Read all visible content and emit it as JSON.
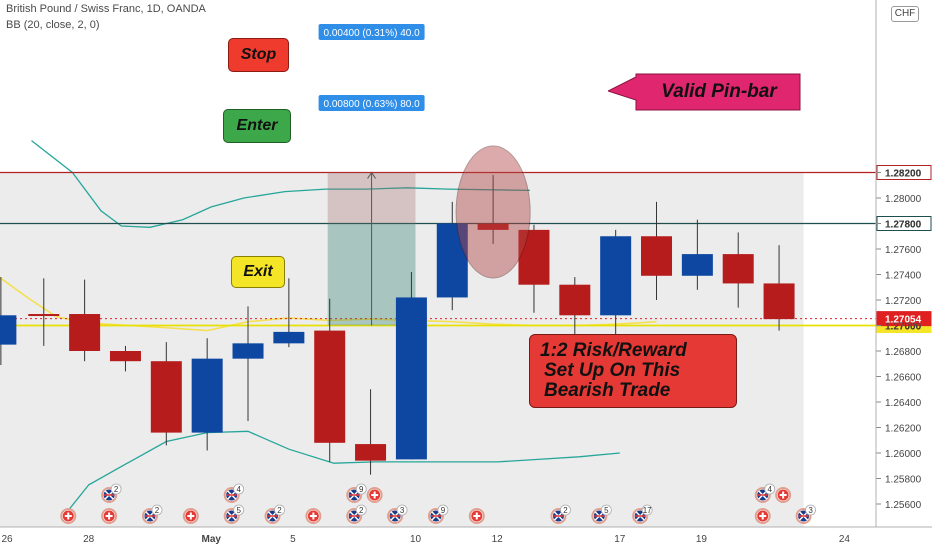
{
  "header": {
    "symbol_line": "British Pound / Swiss Franc, 1D, OANDA",
    "indicator_line": "BB (20, close, 2, 0)",
    "currency_badge": "CHF"
  },
  "chart_data": {
    "type": "candlestick",
    "title": "British Pound / Swiss Franc, 1D, OANDA",
    "ylim": [
      1.2555,
      1.2845
    ],
    "y_ticks": [
      "1.25600",
      "1.25800",
      "1.26000",
      "1.26200",
      "1.26400",
      "1.26600",
      "1.26800",
      "1.27000",
      "1.27200",
      "1.27400",
      "1.27600",
      "1.27800",
      "1.28000",
      "1.28200"
    ],
    "x_tick_labels": [
      {
        "label": "26",
        "slot": 0
      },
      {
        "label": "28",
        "slot": 2
      },
      {
        "label": "May",
        "slot": 5
      },
      {
        "label": "5",
        "slot": 7
      },
      {
        "label": "10",
        "slot": 10
      },
      {
        "label": "12",
        "slot": 12
      },
      {
        "label": "17",
        "slot": 15
      },
      {
        "label": "19",
        "slot": 17
      },
      {
        "label": "24",
        "slot": 20.5
      }
    ],
    "candles": [
      {
        "slot": -0.15,
        "open": 1.2685,
        "high": 1.2738,
        "low": 1.2669,
        "close": 1.2708
      },
      {
        "slot": 0.9,
        "open": 1.2709,
        "high": 1.2737,
        "low": 1.2684,
        "close": 1.2708
      },
      {
        "slot": 1.9,
        "open": 1.2709,
        "high": 1.2736,
        "low": 1.2672,
        "close": 1.268
      },
      {
        "slot": 2.9,
        "open": 1.268,
        "high": 1.2684,
        "low": 1.2664,
        "close": 1.2672
      },
      {
        "slot": 3.9,
        "open": 1.2672,
        "high": 1.2687,
        "low": 1.2606,
        "close": 1.2616
      },
      {
        "slot": 4.9,
        "open": 1.2616,
        "high": 1.269,
        "low": 1.2602,
        "close": 1.2674
      },
      {
        "slot": 5.9,
        "open": 1.2674,
        "high": 1.2715,
        "low": 1.2625,
        "close": 1.2686
      },
      {
        "slot": 6.9,
        "open": 1.2686,
        "high": 1.2737,
        "low": 1.2683,
        "close": 1.2695
      },
      {
        "slot": 7.9,
        "open": 1.2696,
        "high": 1.2721,
        "low": 1.2593,
        "close": 1.2608
      },
      {
        "slot": 8.9,
        "open": 1.2607,
        "high": 1.265,
        "low": 1.2583,
        "close": 1.2594
      },
      {
        "slot": 9.9,
        "open": 1.2595,
        "high": 1.2742,
        "low": 1.2595,
        "close": 1.2722
      },
      {
        "slot": 10.9,
        "open": 1.2722,
        "high": 1.2797,
        "low": 1.2712,
        "close": 1.278
      },
      {
        "slot": 11.9,
        "open": 1.278,
        "high": 1.2818,
        "low": 1.2764,
        "close": 1.2775
      },
      {
        "slot": 12.9,
        "open": 1.2775,
        "high": 1.2779,
        "low": 1.271,
        "close": 1.2732
      },
      {
        "slot": 13.9,
        "open": 1.2732,
        "high": 1.2738,
        "low": 1.2683,
        "close": 1.2708
      },
      {
        "slot": 14.9,
        "open": 1.2708,
        "high": 1.2775,
        "low": 1.2691,
        "close": 1.277
      },
      {
        "slot": 15.9,
        "open": 1.277,
        "high": 1.2797,
        "low": 1.272,
        "close": 1.2739
      },
      {
        "slot": 16.9,
        "open": 1.2739,
        "high": 1.2783,
        "low": 1.2728,
        "close": 1.2756
      },
      {
        "slot": 17.9,
        "open": 1.2756,
        "high": 1.2773,
        "low": 1.2714,
        "close": 1.2733
      },
      {
        "slot": 18.9,
        "open": 1.2733,
        "high": 1.2763,
        "low": 1.2696,
        "close": 1.2705
      }
    ],
    "bb_upper": [
      [
        0.6,
        1.2845
      ],
      [
        1.6,
        1.282
      ],
      [
        2.3,
        1.279
      ],
      [
        2.8,
        1.2778
      ],
      [
        3.5,
        1.2777
      ],
      [
        4.3,
        1.2783
      ],
      [
        5.0,
        1.2793
      ],
      [
        5.8,
        1.28
      ],
      [
        6.8,
        1.2805
      ],
      [
        7.8,
        1.2807
      ],
      [
        8.8,
        1.2807
      ],
      [
        9.8,
        1.2808
      ],
      [
        10.8,
        1.2807
      ],
      [
        12.8,
        1.2806
      ]
    ],
    "bb_basis": [
      [
        -2.5,
        1.2795
      ],
      [
        -1.5,
        1.277
      ],
      [
        -0.5,
        1.2745
      ],
      [
        0.5,
        1.2722
      ],
      [
        1.2,
        1.2707
      ],
      [
        2.0,
        1.2702
      ],
      [
        3.0,
        1.27
      ],
      [
        4.0,
        1.2698
      ],
      [
        4.9,
        1.2696
      ],
      [
        5.9,
        1.2703
      ],
      [
        6.9,
        1.2706
      ],
      [
        7.9,
        1.2704
      ],
      [
        8.9,
        1.2705
      ],
      [
        9.9,
        1.2704
      ],
      [
        10.9,
        1.2703
      ],
      [
        11.9,
        1.2701
      ],
      [
        12.9,
        1.27
      ],
      [
        13.9,
        1.27
      ],
      [
        14.9,
        1.2701
      ],
      [
        15.9,
        1.2703
      ]
    ],
    "bb_lower": [
      [
        1.5,
        1.2555
      ],
      [
        2.0,
        1.2575
      ],
      [
        3.0,
        1.2593
      ],
      [
        3.9,
        1.2609
      ],
      [
        4.9,
        1.2616
      ],
      [
        5.9,
        1.2617
      ],
      [
        6.9,
        1.2603
      ],
      [
        8.0,
        1.2592
      ],
      [
        9.0,
        1.2593
      ],
      [
        10.0,
        1.2593
      ],
      [
        11.0,
        1.2593
      ],
      [
        12.0,
        1.2593
      ],
      [
        13.0,
        1.2595
      ],
      [
        14.0,
        1.2597
      ],
      [
        15.0,
        1.26
      ]
    ],
    "last_price": 1.27054,
    "levels": [
      {
        "name": "stop",
        "value": 1.282,
        "label": "1.28200",
        "color": "#b22222"
      },
      {
        "name": "enter",
        "value": 1.278,
        "label": "1.27800",
        "color": "#1f4e4e"
      },
      {
        "name": "exit",
        "value": 1.27,
        "label": "1.27000",
        "color": "#e8e000"
      },
      {
        "name": "last",
        "value": 1.27054,
        "label": "1.27054",
        "color": "#e02020"
      }
    ],
    "measure": {
      "label_top": "0.00400 (0.31%) 40.0",
      "label_mid": "0.00800 (0.63%) 80.0"
    },
    "colors": {
      "bull": "#0d47a1",
      "bear": "#b71c1c",
      "bb": "#26a69a",
      "basis": "#f5e050",
      "bg_shade": "#e9e9e9"
    },
    "event_markers": {
      "row_top": [
        {
          "slot": 2.5,
          "count": "2"
        },
        {
          "slot": 5.5,
          "count": "4"
        },
        {
          "slot": 8.5,
          "count": "9"
        },
        {
          "slot": 9,
          "count": ""
        },
        {
          "slot": 18.5,
          "count": "4"
        },
        {
          "slot": 19,
          "count": ""
        }
      ],
      "row_bottom": [
        {
          "slot": 1.5,
          "count": ""
        },
        {
          "slot": 2.5,
          "count": ""
        },
        {
          "slot": 3.5,
          "count": "2"
        },
        {
          "slot": 4.5,
          "count": ""
        },
        {
          "slot": 5.5,
          "count": "5"
        },
        {
          "slot": 6.5,
          "count": "2"
        },
        {
          "slot": 7.5,
          "count": ""
        },
        {
          "slot": 8.5,
          "count": "2"
        },
        {
          "slot": 9.5,
          "count": "3"
        },
        {
          "slot": 10.5,
          "count": "9"
        },
        {
          "slot": 11.5,
          "count": ""
        },
        {
          "slot": 13.5,
          "count": "2"
        },
        {
          "slot": 14.5,
          "count": "5"
        },
        {
          "slot": 15.5,
          "count": "17"
        },
        {
          "slot": 18.5,
          "count": ""
        },
        {
          "slot": 19.5,
          "count": "3"
        }
      ]
    }
  },
  "annotations": {
    "stop": "Stop",
    "enter": "Enter",
    "exit": "Exit",
    "pinbar": "Valid Pin-bar",
    "note_line1": "1:2 Risk/Reward",
    "note_line2": "Set Up On This",
    "note_line3": "Bearish Trade"
  }
}
